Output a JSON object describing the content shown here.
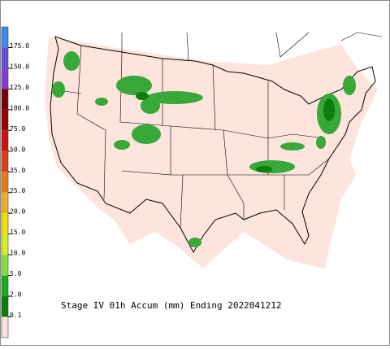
{
  "title": "Stage IV 01h Accum (mm) Ending 2022041212",
  "legend": {
    "labels": [
      "175.0",
      "150.0",
      "125.0",
      "100.0",
      "75.0",
      "50.0",
      "35.0",
      "25.0",
      "20.0",
      "15.0",
      "10.0",
      "5.0",
      "2.0",
      "0.1"
    ],
    "colors": [
      "#3a8cf0",
      "#6a4ed8",
      "#8a3ad8",
      "#7a0000",
      "#a00000",
      "#d01010",
      "#e04010",
      "#f07810",
      "#f0b020",
      "#f0e000",
      "#d8f020",
      "#80e040",
      "#18b018",
      "#088008",
      "#fde4dc"
    ]
  }
}
